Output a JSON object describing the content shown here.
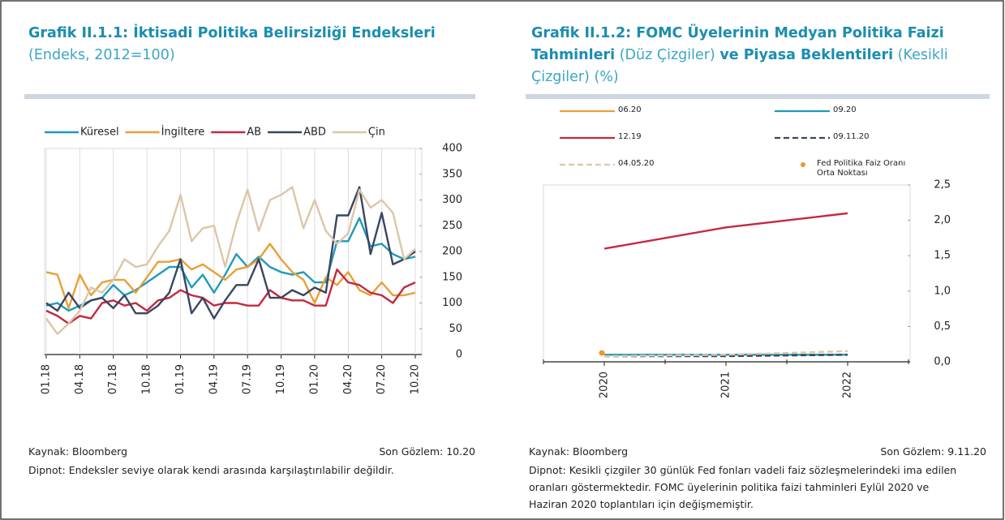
{
  "chart_data": [
    {
      "type": "line",
      "title": [
        "Grafik II.1.1: İktisadi Politika Belirsizliği Endeksleri"
      ],
      "subtitle": "(Endeks, 2012=100)",
      "categories": [
        "01.18",
        null,
        null,
        "04.18",
        null,
        null,
        "07.18",
        null,
        null,
        "10.18",
        null,
        null,
        "01.19",
        null,
        null,
        "04.19",
        null,
        null,
        "07.19",
        null,
        null,
        "10.19",
        null,
        null,
        "01.20",
        null,
        null,
        "04.20",
        null,
        null,
        "07.20",
        null,
        null,
        "10.20"
      ],
      "series": [
        {
          "name": "Küresel",
          "color": "#1f9bbb",
          "values": [
            95,
            100,
            85,
            95,
            105,
            110,
            135,
            115,
            125,
            140,
            155,
            170,
            170,
            130,
            155,
            120,
            155,
            195,
            170,
            190,
            170,
            160,
            155,
            160,
            140,
            140,
            220,
            220,
            265,
            210,
            215,
            195,
            185,
            190
          ]
        },
        {
          "name": "İngiltere",
          "color": "#e8a035",
          "values": [
            160,
            155,
            90,
            155,
            115,
            140,
            145,
            145,
            120,
            150,
            180,
            180,
            185,
            165,
            175,
            160,
            145,
            165,
            170,
            185,
            215,
            185,
            160,
            145,
            100,
            150,
            135,
            160,
            125,
            115,
            140,
            115,
            115,
            120
          ]
        },
        {
          "name": "AB",
          "color": "#c4283f",
          "values": [
            85,
            75,
            60,
            75,
            70,
            100,
            105,
            95,
            100,
            85,
            105,
            110,
            125,
            115,
            110,
            95,
            100,
            100,
            95,
            95,
            125,
            110,
            105,
            105,
            95,
            95,
            165,
            140,
            135,
            120,
            115,
            100,
            130,
            140
          ]
        },
        {
          "name": "ABD",
          "color": "#3a4560",
          "values": [
            100,
            85,
            120,
            90,
            105,
            110,
            90,
            115,
            80,
            80,
            95,
            120,
            185,
            80,
            110,
            70,
            105,
            135,
            135,
            185,
            110,
            110,
            125,
            115,
            130,
            120,
            270,
            270,
            325,
            195,
            275,
            175,
            185,
            200
          ]
        },
        {
          "name": "Çin",
          "color": "#dcc6a8",
          "values": [
            70,
            40,
            60,
            85,
            130,
            120,
            145,
            185,
            170,
            175,
            210,
            240,
            310,
            220,
            245,
            250,
            170,
            255,
            320,
            240,
            300,
            310,
            325,
            245,
            300,
            240,
            215,
            235,
            320,
            285,
            300,
            275,
            185,
            205
          ]
        }
      ],
      "ylim": [
        0,
        400
      ],
      "yticks": [
        0,
        50,
        100,
        150,
        200,
        250,
        300,
        350,
        400
      ],
      "grid": "x",
      "legend": "top",
      "source": "Kaynak: Bloomberg",
      "last_observation": "Son Gözlem: 10.20",
      "note": "Dipnot: Endeksler seviye olarak kendi arasında karşılaştırılabilir değildir."
    },
    {
      "type": "line",
      "title": [
        "Grafik II.1.2: FOMC Üyelerinin Medyan Politika Faizi Tahminleri",
        "(Düz Çizgiler)",
        "ve Piyasa Beklentileri",
        "(Kesikli Çizgiler) (%)"
      ],
      "categories": [
        "2020",
        "2021",
        "2022"
      ],
      "series": [
        {
          "name": "06.20",
          "color": "#e8a035",
          "values": [
            0.1,
            0.1,
            0.1
          ]
        },
        {
          "name": "09.20",
          "color": "#1f9bbb",
          "values": [
            0.1,
            0.1,
            0.1
          ]
        },
        {
          "name": "12.19",
          "color": "#c4283f",
          "values": [
            1.6,
            1.9,
            2.1
          ]
        },
        {
          "name": "09.11.20",
          "color": "#3a4560",
          "dash": true,
          "values": [
            0.08,
            0.08,
            0.1
          ]
        },
        {
          "name": "04.05.20",
          "color": "#dcc6a8",
          "dash": true,
          "values": [
            0.08,
            0.1,
            0.15
          ]
        },
        {
          "name": "Fed Politika Faiz Oranı Orta Noktası",
          "color": "#f0962a",
          "marker": "dot",
          "values": [
            0.125,
            null,
            null
          ]
        }
      ],
      "ylim": [
        0,
        2.5
      ],
      "yticks": [
        {
          "value": 0,
          "label": "0,0"
        },
        {
          "value": 0.5,
          "label": "0,5"
        },
        {
          "value": 1,
          "label": "1,0"
        },
        {
          "value": 1.5,
          "label": "1,5"
        },
        {
          "value": 2,
          "label": "2,0"
        },
        {
          "value": 2.5,
          "label": "2,5"
        }
      ],
      "grid": "none",
      "legend": "top",
      "source": "Kaynak: Bloomberg",
      "last_observation": "Son Gözlem: 9.11.20",
      "note": "Dipnot: Kesikli çizgiler 30 günlük Fed fonları vadeli faiz sözleşmelerindeki ima edilen oranları göstermektedir. FOMC üyelerinin politika faizi tahminleri Eylül 2020 ve Haziran 2020 toplantıları için değişmemiştir."
    }
  ]
}
